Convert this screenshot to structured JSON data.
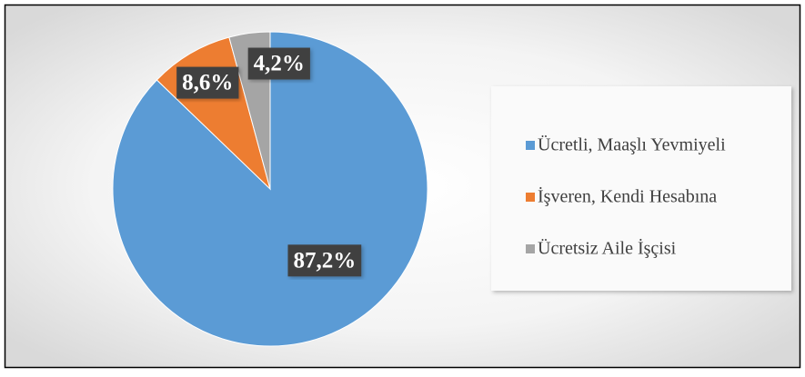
{
  "chart_data": {
    "type": "pie",
    "categories": [
      "Ücretli, Maaşlı Yevmiyeli",
      "İşveren, Kendi Hesabına",
      "Ücretsiz Aile İşçisi"
    ],
    "values": [
      87.2,
      8.6,
      4.2
    ],
    "value_labels": [
      "87,2%",
      "8,6%",
      "4,2%"
    ],
    "colors": [
      "#5b9bd5",
      "#ed7d31",
      "#a5a5a5"
    ],
    "legend": "right"
  }
}
